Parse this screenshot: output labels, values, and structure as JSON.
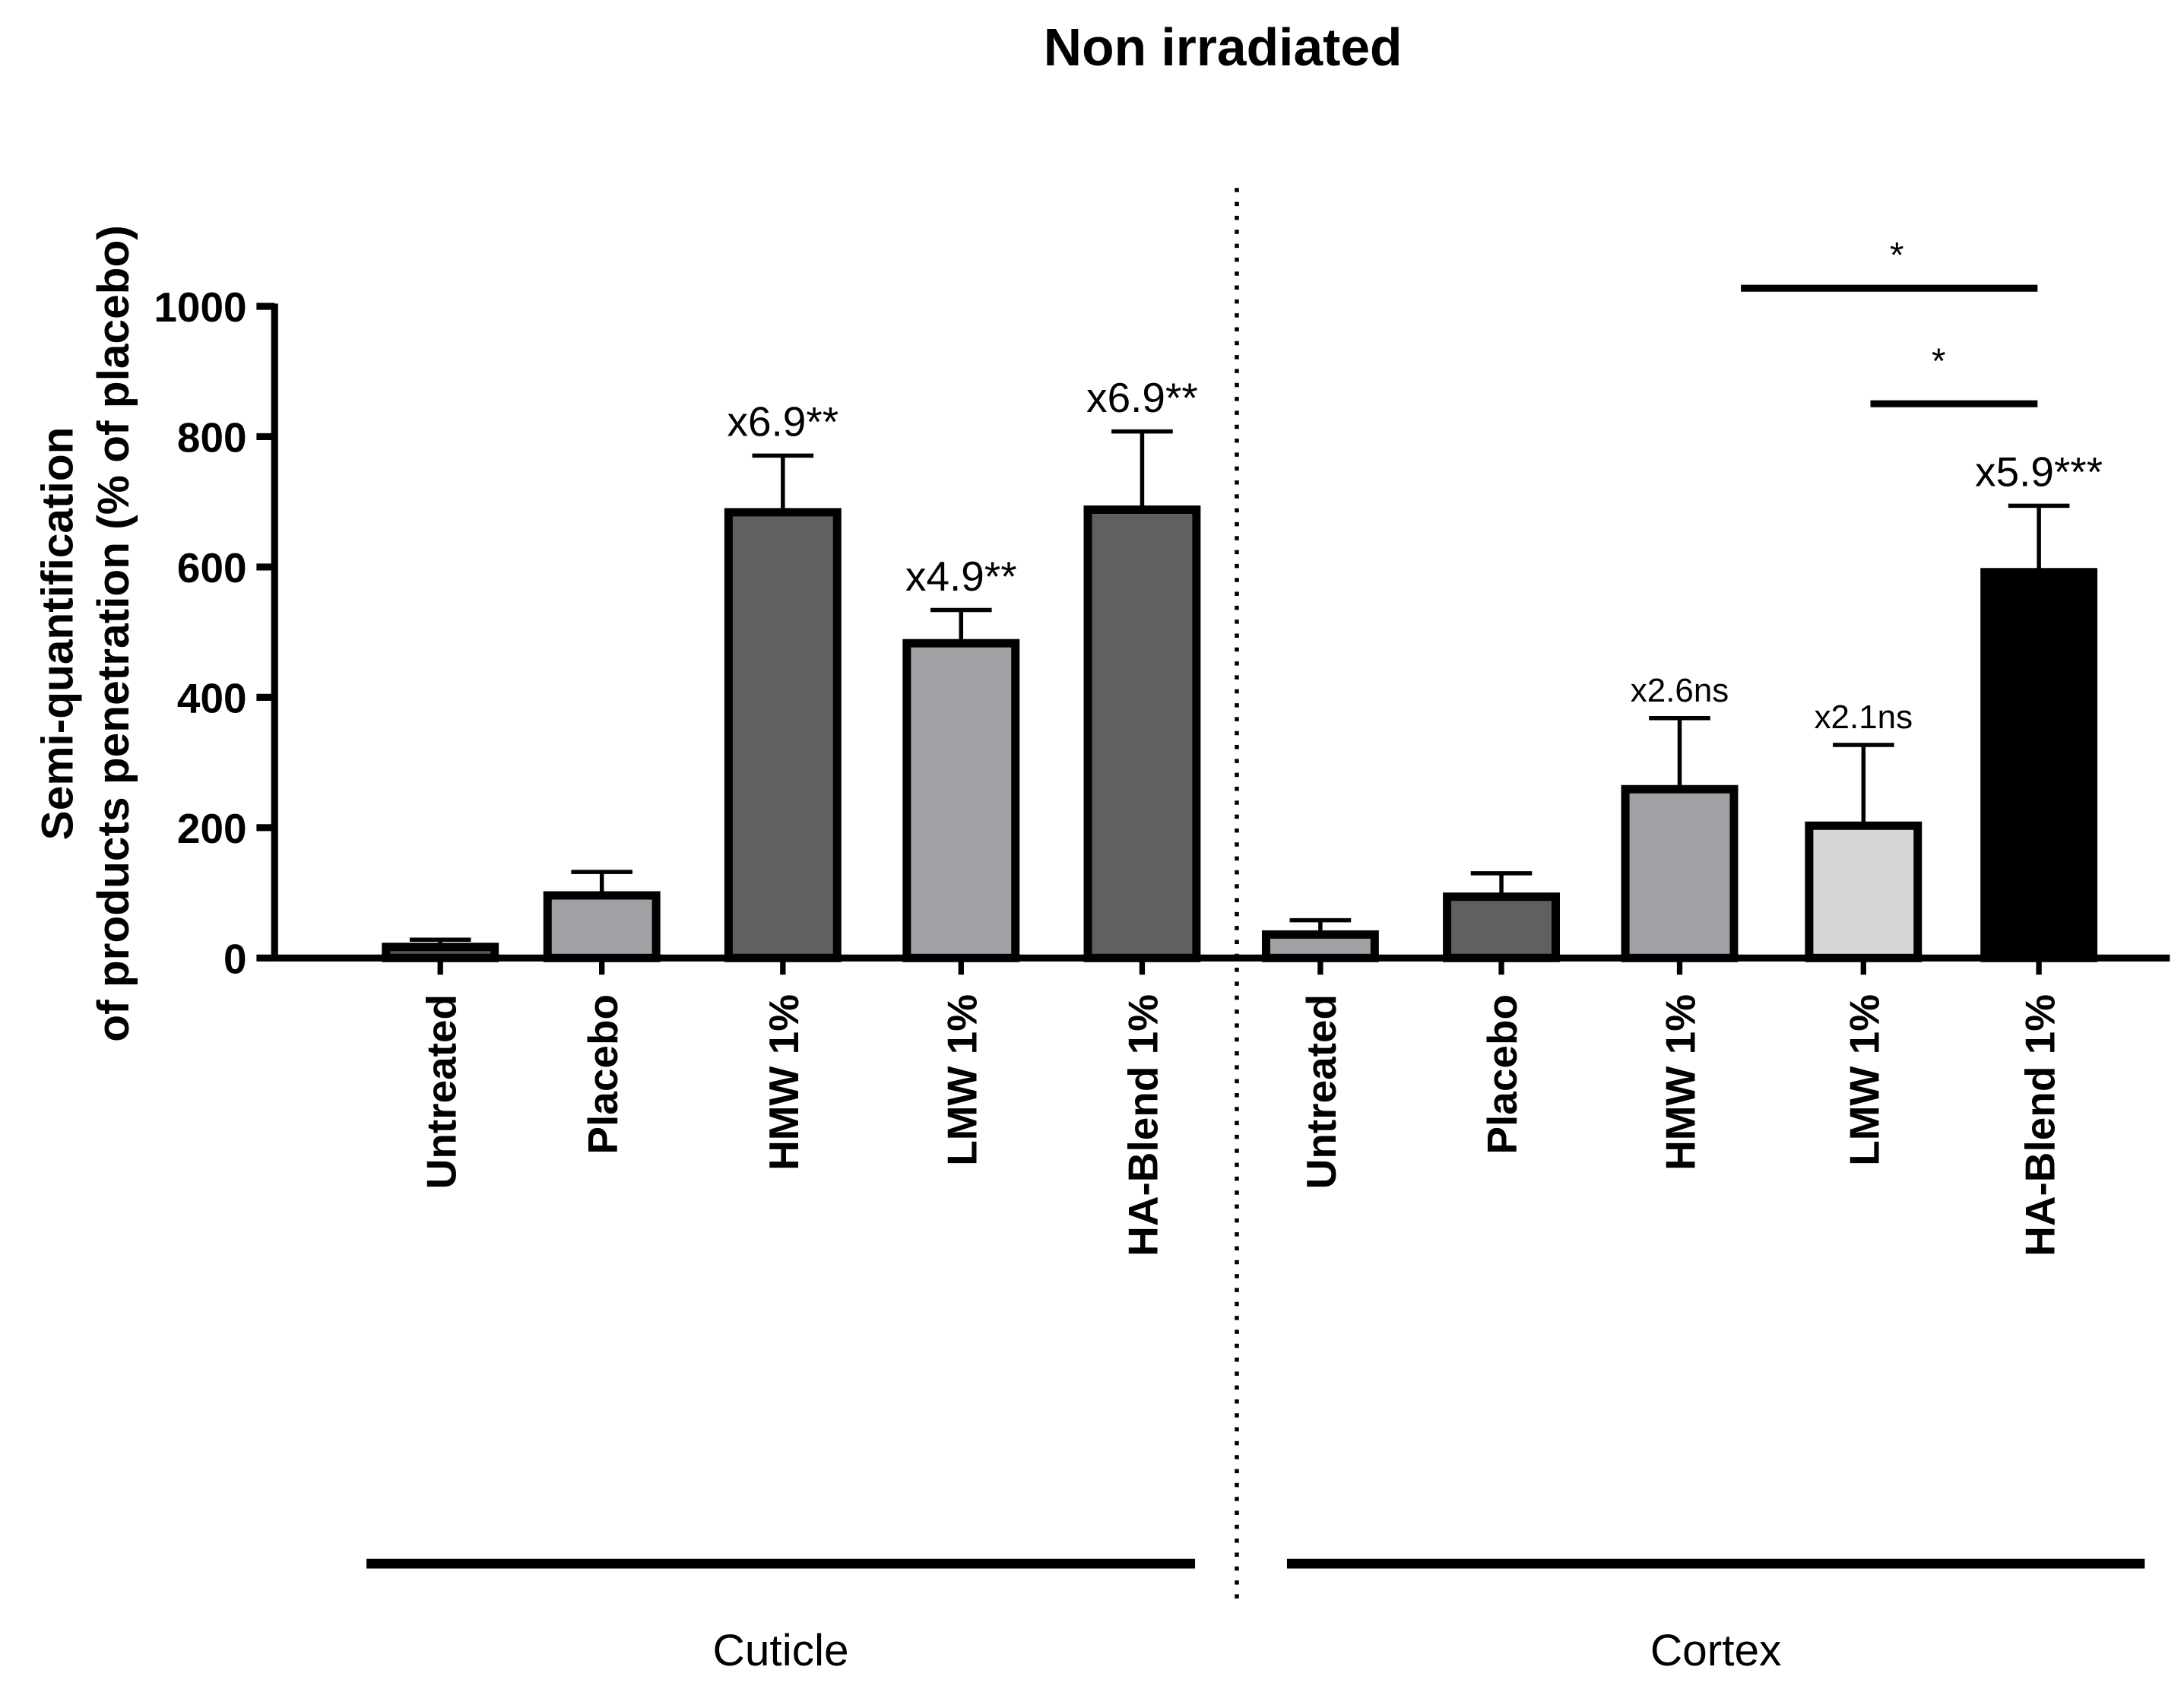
{
  "chart_data": {
    "type": "bar",
    "title": "Non irradiated",
    "ylabel_line1": "Semi-quantification",
    "ylabel_line2": "of products penetration (% of placebo)",
    "ylim": [
      0,
      1000
    ],
    "yticks": [
      0,
      200,
      400,
      600,
      800,
      1000
    ],
    "groups": [
      {
        "name": "Cuticle",
        "bars": [
          {
            "label": "Untreated",
            "value": 17,
            "error": 11,
            "color": "#555555",
            "annotation": ""
          },
          {
            "label": "Placebo",
            "value": 96,
            "error": 36,
            "color": "#a0a0a5",
            "annotation": ""
          },
          {
            "label": "HMW 1%",
            "value": 684,
            "error": 87,
            "color": "#606060",
            "annotation": "x6.9**"
          },
          {
            "label": "LMW 1%",
            "value": 483,
            "error": 51,
            "color": "#a0a0a5",
            "annotation": "x4.9**"
          },
          {
            "label": "HA-Blend 1%",
            "value": 688,
            "error": 120,
            "color": "#606060",
            "annotation": "x6.9**"
          }
        ]
      },
      {
        "name": "Cortex",
        "bars": [
          {
            "label": "Untreated",
            "value": 36,
            "error": 22,
            "color": "#a0a0a5",
            "annotation": ""
          },
          {
            "label": "Placebo",
            "value": 94,
            "error": 36,
            "color": "#606060",
            "annotation": ""
          },
          {
            "label": "HMW 1%",
            "value": 259,
            "error": 109,
            "color": "#a0a0a5",
            "annotation": "x2.6ns"
          },
          {
            "label": "LMW 1%",
            "value": 203,
            "error": 124,
            "color": "#d6d6d6",
            "annotation": "x2.1ns"
          },
          {
            "label": "HA-Blend 1%",
            "value": 592,
            "error": 102,
            "color": "#000000",
            "annotation": "x5.9***"
          }
        ]
      }
    ],
    "significance": [
      {
        "from": "Cortex HMW 1%",
        "to": "Cortex HA-Blend 1%",
        "label": "*"
      },
      {
        "from": "Cortex LMW 1%",
        "to": "Cortex HA-Blend 1%",
        "label": "*"
      }
    ],
    "grid": false
  }
}
